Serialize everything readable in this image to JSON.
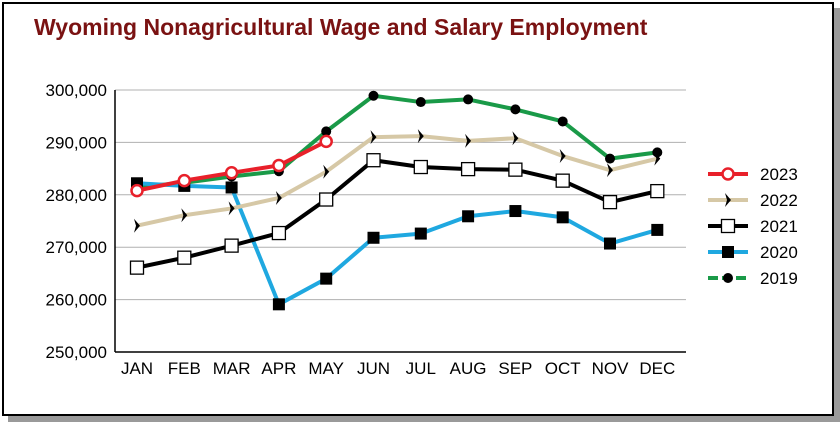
{
  "chart_data": {
    "type": "line",
    "title": "Wyoming Nonagricultural Wage and Salary Employment",
    "xlabel": "",
    "ylabel": "",
    "categories": [
      "JAN",
      "FEB",
      "MAR",
      "APR",
      "MAY",
      "JUN",
      "JUL",
      "AUG",
      "SEP",
      "OCT",
      "NOV",
      "DEC"
    ],
    "ylim": [
      250000,
      300000
    ],
    "yticks": [
      250000,
      260000,
      270000,
      280000,
      290000,
      300000
    ],
    "ytick_labels": [
      "250,000",
      "260,000",
      "270,000",
      "280,000",
      "290,000",
      "300,000"
    ],
    "grid": true,
    "legend_position": "right",
    "series": [
      {
        "name": "2023",
        "color": "#e8202a",
        "marker": "open-circle",
        "values": [
          280800,
          282700,
          284200,
          285600,
          290200,
          null,
          null,
          null,
          null,
          null,
          null,
          null
        ]
      },
      {
        "name": "2022",
        "color": "#d6c8a6",
        "marker": "chevron",
        "values": [
          274100,
          276100,
          277400,
          279400,
          284400,
          291000,
          291200,
          290300,
          290800,
          287400,
          284700,
          286900
        ]
      },
      {
        "name": "2021",
        "color": "#000000",
        "marker": "open-square",
        "values": [
          266100,
          268000,
          270300,
          272700,
          279100,
          286600,
          285300,
          284900,
          284800,
          282700,
          278600,
          280700
        ]
      },
      {
        "name": "2020",
        "color": "#1fa8e0",
        "marker": "filled-square",
        "values": [
          282200,
          281700,
          281400,
          259100,
          264000,
          271800,
          272600,
          275900,
          276900,
          275700,
          270700,
          273300
        ]
      },
      {
        "name": "2019",
        "color": "#1a9a48",
        "marker": "filled-circle",
        "values": [
          281500,
          282300,
          283500,
          284500,
          292100,
          298900,
          297700,
          298200,
          296300,
          294000,
          286900,
          288100
        ]
      }
    ]
  }
}
